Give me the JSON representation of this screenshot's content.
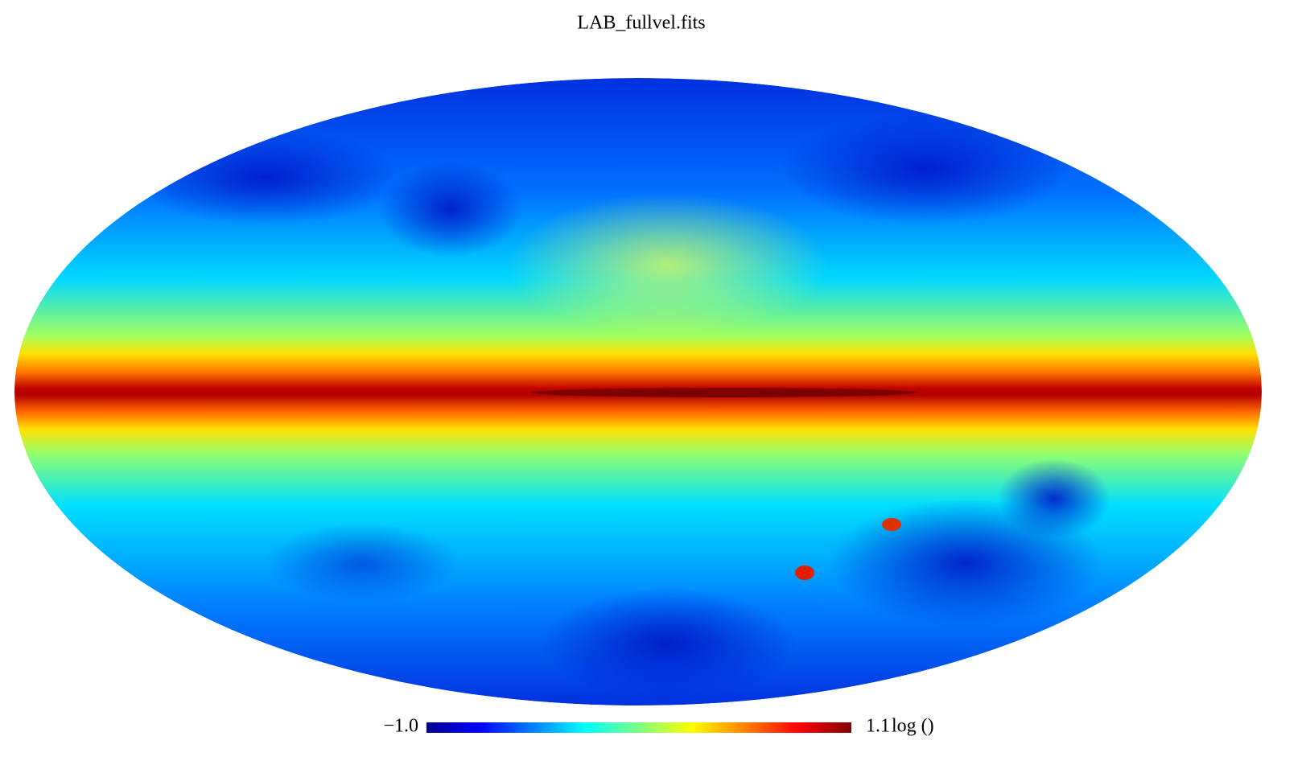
{
  "title": "LAB_fullvel.fits",
  "colorbar": {
    "min": {
      "value": -1,
      "label": "−1.0"
    },
    "max": 1.1,
    "unit": "log ()"
  }
}
